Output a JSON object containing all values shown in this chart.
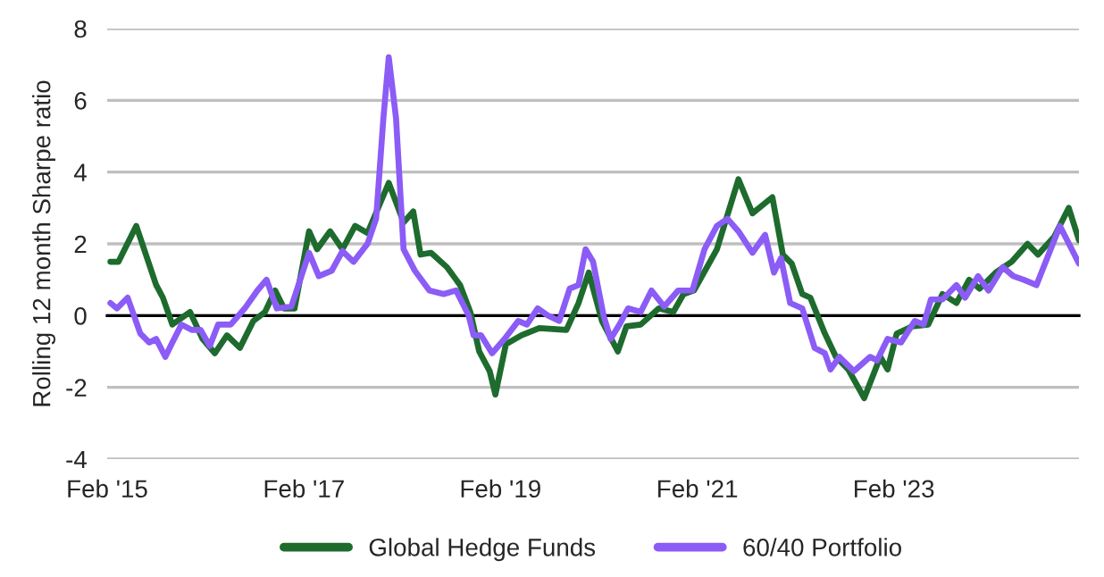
{
  "chart_data": {
    "type": "line",
    "ylabel": "Rolling 12 month Sharpe ratio",
    "xlim": [
      "2015-02-01",
      "2024-12-20"
    ],
    "xticks": [
      {
        "value": "2015-02-01",
        "label": "Feb '15"
      },
      {
        "value": "2017-02-01",
        "label": "Feb '17"
      },
      {
        "value": "2019-02-01",
        "label": "Feb '19"
      },
      {
        "value": "2021-02-01",
        "label": "Feb '21"
      },
      {
        "value": "2023-02-01",
        "label": "Feb '23"
      }
    ],
    "ylim": [
      -4,
      8
    ],
    "yticks": [
      -4,
      -2,
      0,
      2,
      4,
      6,
      8
    ],
    "grid": "y",
    "legend": "bottom",
    "line_style": "solid",
    "marker": "none",
    "series": [
      {
        "name": "Global Hedge Funds",
        "color": "#1e6b2e",
        "x": [
          "2015-02-13",
          "2015-03-15",
          "2015-05-20",
          "2015-08-02",
          "2015-08-27",
          "2015-10-01",
          "2015-12-06",
          "2016-01-21",
          "2016-03-07",
          "2016-04-21",
          "2016-06-08",
          "2016-07-28",
          "2016-09-09",
          "2016-10-17",
          "2016-11-19",
          "2016-12-28",
          "2017-02-20",
          "2017-03-22",
          "2017-05-09",
          "2017-06-24",
          "2017-08-10",
          "2017-09-25",
          "2017-12-13",
          "2018-02-06",
          "2018-03-14",
          "2018-04-10",
          "2018-05-19",
          "2018-07-17",
          "2018-09-04",
          "2018-10-12",
          "2018-11-14",
          "2018-12-23",
          "2019-01-13",
          "2019-02-21",
          "2019-04-20",
          "2019-06-25",
          "2019-10-04",
          "2019-11-18",
          "2019-12-26",
          "2020-02-13",
          "2020-04-12",
          "2020-05-14",
          "2020-07-06",
          "2020-09-11",
          "2020-11-04",
          "2020-12-12",
          "2021-01-20",
          "2021-04-15",
          "2021-07-04",
          "2021-08-25",
          "2021-11-07",
          "2021-12-16",
          "2022-01-18",
          "2022-02-26",
          "2022-03-28",
          "2022-05-21",
          "2022-07-01",
          "2022-08-16",
          "2022-10-14",
          "2022-12-13",
          "2023-01-09",
          "2023-02-12",
          "2023-04-10",
          "2023-06-09",
          "2023-08-01",
          "2023-09-22",
          "2023-11-08",
          "2023-12-17",
          "2024-02-15",
          "2024-04-14",
          "2024-06-12",
          "2024-07-21",
          "2024-09-19",
          "2024-11-12",
          "2024-12-20"
        ],
        "values": [
          1.5,
          1.5,
          2.5,
          0.85,
          0.5,
          -0.25,
          0.1,
          -0.65,
          -1.05,
          -0.55,
          -0.9,
          -0.15,
          0.1,
          0.7,
          0.2,
          0.2,
          2.35,
          1.85,
          2.35,
          1.85,
          2.5,
          2.3,
          3.7,
          2.6,
          2.9,
          1.7,
          1.75,
          1.35,
          0.85,
          0.1,
          -1.0,
          -1.55,
          -2.2,
          -0.8,
          -0.55,
          -0.35,
          -0.4,
          0.35,
          1.2,
          -0.15,
          -1.0,
          -0.3,
          -0.25,
          0.2,
          0.1,
          0.6,
          0.7,
          1.85,
          3.8,
          2.85,
          3.3,
          1.7,
          1.45,
          0.6,
          0.5,
          -0.5,
          -1.15,
          -1.5,
          -2.3,
          -1.15,
          -1.5,
          -0.5,
          -0.3,
          -0.25,
          0.6,
          0.35,
          1.0,
          0.75,
          1.2,
          1.5,
          2.0,
          1.7,
          2.2,
          3.0,
          2.1
        ]
      },
      {
        "name": "60/40 Portfolio",
        "color": "#8b5cf6",
        "x": [
          "2015-02-13",
          "2015-03-09",
          "2015-04-18",
          "2015-06-04",
          "2015-07-07",
          "2015-08-02",
          "2015-09-05",
          "2015-10-01",
          "2015-11-04",
          "2015-12-12",
          "2016-01-14",
          "2016-02-17",
          "2016-03-19",
          "2016-05-05",
          "2016-06-26",
          "2016-08-12",
          "2016-09-15",
          "2016-10-23",
          "2016-12-16",
          "2017-02-20",
          "2017-03-28",
          "2017-05-15",
          "2017-06-24",
          "2017-08-04",
          "2017-09-25",
          "2017-10-27",
          "2017-11-23",
          "2017-12-13",
          "2018-01-09",
          "2018-02-06",
          "2018-03-20",
          "2018-05-13",
          "2018-07-05",
          "2018-08-20",
          "2018-10-06",
          "2018-10-24",
          "2018-11-21",
          "2019-01-01",
          "2019-02-16",
          "2019-04-08",
          "2019-05-10",
          "2019-06-19",
          "2019-07-27",
          "2019-09-07",
          "2019-10-16",
          "2019-11-18",
          "2019-12-14",
          "2020-01-11",
          "2020-02-19",
          "2020-03-16",
          "2020-04-18",
          "2020-05-20",
          "2020-07-06",
          "2020-08-15",
          "2020-10-01",
          "2020-11-22",
          "2021-01-14",
          "2021-02-28",
          "2021-04-15",
          "2021-05-24",
          "2021-07-04",
          "2021-08-25",
          "2021-10-11",
          "2021-11-13",
          "2021-12-09",
          "2022-01-12",
          "2022-02-26",
          "2022-04-13",
          "2022-05-21",
          "2022-06-11",
          "2022-07-14",
          "2022-09-06",
          "2022-11-05",
          "2022-12-01",
          "2023-01-09",
          "2023-02-28",
          "2023-04-20",
          "2023-05-23",
          "2023-06-19",
          "2023-08-01",
          "2023-09-22",
          "2023-10-24",
          "2023-12-11",
          "2024-01-19",
          "2024-03-12",
          "2024-04-20",
          "2024-05-28",
          "2024-07-15",
          "2024-10-10",
          "2024-12-20"
        ],
        "values": [
          0.35,
          0.2,
          0.5,
          -0.5,
          -0.75,
          -0.65,
          -1.15,
          -0.75,
          -0.25,
          -0.4,
          -0.4,
          -0.85,
          -0.25,
          -0.25,
          0.2,
          0.7,
          1.0,
          0.2,
          0.25,
          1.75,
          1.1,
          1.25,
          1.8,
          1.5,
          2.0,
          2.7,
          5.5,
          7.2,
          5.5,
          1.85,
          1.25,
          0.7,
          0.6,
          0.7,
          0,
          -0.55,
          -0.55,
          -1.05,
          -0.65,
          -0.15,
          -0.25,
          0.2,
          0,
          -0.15,
          0.75,
          0.85,
          1.85,
          1.5,
          0,
          -0.65,
          -0.25,
          0.2,
          0.1,
          0.7,
          0.25,
          0.7,
          0.7,
          1.85,
          2.5,
          2.7,
          2.35,
          1.75,
          2.25,
          1.2,
          1.6,
          0.35,
          0.2,
          -0.9,
          -1.05,
          -1.5,
          -1.15,
          -1.55,
          -1.15,
          -1.25,
          -0.65,
          -0.75,
          -0.15,
          -0.25,
          0.45,
          0.45,
          0.85,
          0.5,
          1.1,
          0.7,
          1.35,
          1.1,
          1.0,
          0.85,
          2.5,
          1.45
        ]
      }
    ]
  }
}
